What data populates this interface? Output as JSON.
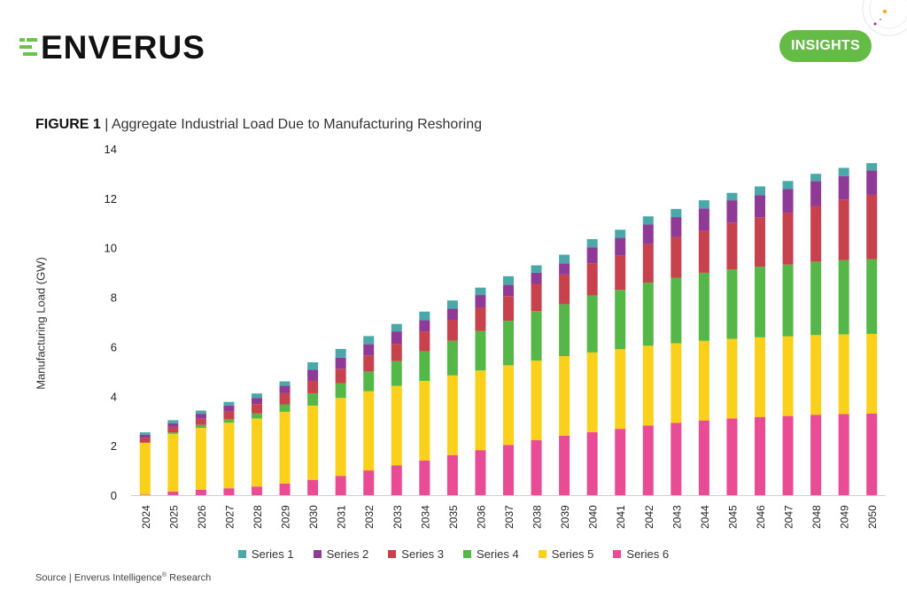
{
  "header": {
    "logo_text": "ENVERUS",
    "insights_label": "INSIGHTS"
  },
  "figure": {
    "label": "FIGURE 1",
    "separator": "|",
    "title": "Aggregate Industrial Load Due to Manufacturing Reshoring"
  },
  "source": {
    "prefix": "Source | Enverus Intelligence",
    "mark": "®",
    "suffix": " Research"
  },
  "colors": {
    "accent": "#64bc46",
    "Series 1": "#4aa8a8",
    "Series 2": "#8e3a96",
    "Series 3": "#c8424e",
    "Series 4": "#55b747",
    "Series 5": "#fad01a",
    "Series 6": "#ea4b95"
  },
  "chart_data": {
    "type": "bar",
    "stacked": true,
    "title": "Aggregate Industrial Load Due to Manufacturing Reshoring",
    "xlabel": "",
    "ylabel": "Manufacturing Load (GW)",
    "ylim": [
      0,
      14
    ],
    "yticks": [
      0,
      2,
      4,
      6,
      8,
      10,
      12,
      14
    ],
    "grid": false,
    "legend_position": "bottom",
    "categories": [
      "2024",
      "2025",
      "2026",
      "2027",
      "2028",
      "2029",
      "2030",
      "2031",
      "2032",
      "2033",
      "2034",
      "2035",
      "2036",
      "2037",
      "2038",
      "2039",
      "2040",
      "2041",
      "2042",
      "2043",
      "2044",
      "2045",
      "2046",
      "2047",
      "2048",
      "2049",
      "2050"
    ],
    "series": [
      {
        "name": "Series 6",
        "values": [
          0.02,
          0.15,
          0.22,
          0.28,
          0.35,
          0.47,
          0.62,
          0.78,
          1.0,
          1.2,
          1.4,
          1.62,
          1.82,
          2.03,
          2.22,
          2.4,
          2.55,
          2.68,
          2.82,
          2.92,
          3.02,
          3.1,
          3.16,
          3.2,
          3.25,
          3.28,
          3.3
        ]
      },
      {
        "name": "Series 5",
        "values": [
          2.1,
          2.33,
          2.5,
          2.65,
          2.75,
          2.9,
          3.0,
          3.15,
          3.2,
          3.22,
          3.22,
          3.22,
          3.22,
          3.22,
          3.22,
          3.22,
          3.22,
          3.22,
          3.22,
          3.22,
          3.22,
          3.22,
          3.22,
          3.22,
          3.22,
          3.22,
          3.22
        ]
      },
      {
        "name": "Series 4",
        "values": [
          0.0,
          0.06,
          0.12,
          0.15,
          0.2,
          0.3,
          0.5,
          0.6,
          0.8,
          1.0,
          1.2,
          1.4,
          1.6,
          1.8,
          2.0,
          2.1,
          2.3,
          2.4,
          2.55,
          2.65,
          2.75,
          2.8,
          2.85,
          2.9,
          2.97,
          3.0,
          3.02
        ]
      },
      {
        "name": "Series 3",
        "values": [
          0.2,
          0.22,
          0.25,
          0.32,
          0.38,
          0.45,
          0.5,
          0.58,
          0.65,
          0.7,
          0.8,
          0.85,
          0.95,
          1.0,
          1.1,
          1.2,
          1.3,
          1.4,
          1.55,
          1.65,
          1.7,
          1.9,
          2.0,
          2.1,
          2.25,
          2.45,
          2.6
        ]
      },
      {
        "name": "Series 2",
        "values": [
          0.12,
          0.15,
          0.2,
          0.22,
          0.25,
          0.3,
          0.45,
          0.45,
          0.45,
          0.5,
          0.45,
          0.45,
          0.5,
          0.45,
          0.45,
          0.45,
          0.65,
          0.7,
          0.8,
          0.8,
          0.9,
          0.9,
          0.9,
          0.95,
          1.0,
          0.95,
          0.98
        ]
      },
      {
        "name": "Series 1",
        "values": [
          0.1,
          0.12,
          0.13,
          0.15,
          0.18,
          0.18,
          0.3,
          0.35,
          0.33,
          0.3,
          0.35,
          0.33,
          0.3,
          0.35,
          0.3,
          0.35,
          0.33,
          0.33,
          0.33,
          0.33,
          0.33,
          0.3,
          0.35,
          0.33,
          0.3,
          0.33,
          0.3
        ]
      }
    ],
    "legend_order": [
      "Series 1",
      "Series 2",
      "Series 3",
      "Series 4",
      "Series 5",
      "Series 6"
    ]
  }
}
